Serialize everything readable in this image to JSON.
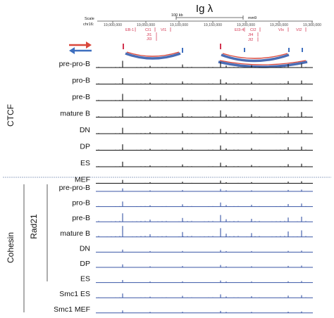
{
  "title": "Ig λ",
  "browser": {
    "scale_label": "Scale",
    "chrom_label": "chr16:",
    "scalebar_text": "100 kb",
    "assembly": "mm9",
    "coordinates": [
      "19,000,000",
      "19,050,000",
      "19,100,000",
      "19,150,000",
      "19,200,000",
      "19,250,000",
      "19,300,000"
    ],
    "segments": [
      "EB-1",
      "CI1",
      "JI1",
      "JI3",
      "VI1",
      "EI3-4",
      "CI2",
      "JI4",
      "JI2",
      "VIx",
      "VI2"
    ]
  },
  "colors": {
    "ctcf": "#111111",
    "cohesin": "#3a56a6",
    "segment": "#d2334f",
    "arrow_red": "#d9473b",
    "arrow_blue": "#3e6fbf"
  },
  "groups": {
    "ctcf": "CTCF",
    "cohesin": "Cohesin",
    "rad21": "Rad21"
  },
  "ctcf_tracks": [
    "pre-pro-B",
    "pro-B",
    "pre-B",
    "mature B",
    "DN",
    "DP",
    "ES",
    "MEF"
  ],
  "cohesin_tracks": [
    "pre-pro-B",
    "pro-B",
    "pre-B",
    "mature B",
    "DN",
    "DP",
    "ES",
    "Smc1  ES",
    "Smc1 MEF"
  ]
}
